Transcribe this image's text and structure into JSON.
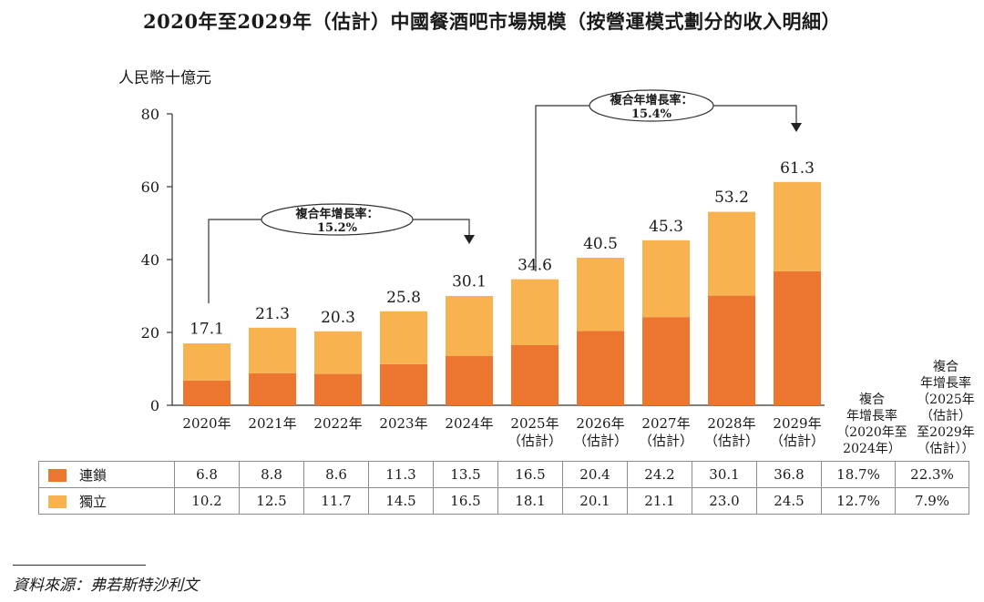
{
  "title": "2020年至2029年（估計）中國餐酒吧市場規模（按營運模式劃分的收入明細）",
  "chart_data": {
    "type": "bar",
    "stacked": true,
    "ylabel": "人民幣十億元",
    "ylim": [
      0,
      80
    ],
    "yticks": [
      0,
      20,
      40,
      60,
      80
    ],
    "categories": [
      [
        "2020年"
      ],
      [
        "2021年"
      ],
      [
        "2022年"
      ],
      [
        "2023年"
      ],
      [
        "2024年"
      ],
      [
        "2025年",
        "（估計）"
      ],
      [
        "2026年",
        "（估計）"
      ],
      [
        "2027年",
        "（估計）"
      ],
      [
        "2028年",
        "（估計）"
      ],
      [
        "2029年",
        "（估計）"
      ]
    ],
    "series": [
      {
        "name": "連鎖",
        "values": [
          6.8,
          8.8,
          8.6,
          11.3,
          13.5,
          16.5,
          20.4,
          24.2,
          30.1,
          36.8
        ],
        "color": "#ec7530"
      },
      {
        "name": "獨立",
        "values": [
          10.2,
          12.5,
          11.7,
          14.5,
          16.5,
          18.1,
          20.1,
          21.1,
          23.0,
          24.5
        ],
        "color": "#f8b350"
      }
    ],
    "totals": [
      17.1,
      21.3,
      20.3,
      25.8,
      30.1,
      34.6,
      40.5,
      45.3,
      53.2,
      61.3
    ],
    "cagr_annotations": [
      {
        "lines": [
          "複合年增長率：",
          "15.2%"
        ],
        "from": 0,
        "to": 4
      },
      {
        "lines": [
          "複合年增長率：",
          "15.4%"
        ],
        "from": 5,
        "to": 9
      }
    ]
  },
  "table": {
    "cagr_headers": [
      [
        "複合",
        "年增長率",
        "（2020年至",
        "2024年）"
      ],
      [
        "複合",
        "年增長率",
        "（2025年",
        "（估計）",
        "至2029年",
        "（估計））"
      ]
    ],
    "rows": [
      {
        "label": "連鎖",
        "color": "#ec7530",
        "values": [
          "6.8",
          "8.8",
          "8.6",
          "11.3",
          "13.5",
          "16.5",
          "20.4",
          "24.2",
          "30.1",
          "36.8"
        ],
        "cagr": [
          "18.7%",
          "22.3%"
        ]
      },
      {
        "label": "獨立",
        "color": "#f8b350",
        "values": [
          "10.2",
          "12.5",
          "11.7",
          "14.5",
          "16.5",
          "18.1",
          "20.1",
          "21.1",
          "23.0",
          "24.5"
        ],
        "cagr": [
          "12.7%",
          "7.9%"
        ]
      }
    ]
  },
  "source": "資料來源：弗若斯特沙利文"
}
